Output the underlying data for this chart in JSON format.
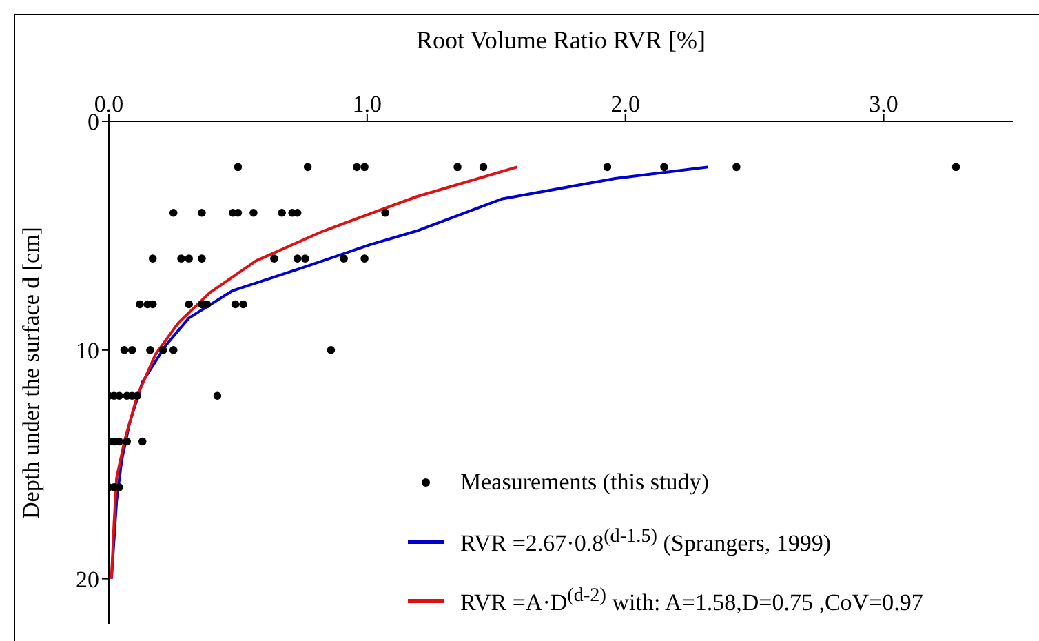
{
  "chart_data": {
    "type": "scatter",
    "xlabel": "Root Volume Ratio RVR [%]",
    "ylabel": "Depth under the surface d [cm]",
    "xlim": [
      0,
      3.5
    ],
    "xticks": [
      {
        "value": 0,
        "label": "0.0"
      },
      {
        "value": 1,
        "label": "1.0"
      },
      {
        "value": 2,
        "label": "2.0"
      },
      {
        "value": 3,
        "label": "3.0"
      }
    ],
    "ylim": [
      22,
      0
    ],
    "yticks": [
      0,
      10,
      20
    ],
    "grid": false,
    "legend": "bottom right",
    "marker": "circle",
    "series": [
      {
        "name": "Measurements (this study)",
        "color": "#000000",
        "x": [
          0.5,
          0.77,
          0.96,
          0.99,
          1.35,
          1.45,
          1.93,
          2.15,
          2.43,
          3.28,
          0.25,
          0.36,
          0.48,
          0.5,
          0.56,
          0.67,
          0.71,
          0.73,
          1.07,
          0.17,
          0.28,
          0.31,
          0.36,
          0.64,
          0.73,
          0.76,
          0.91,
          0.99,
          0.12,
          0.15,
          0.17,
          0.31,
          0.36,
          0.38,
          0.49,
          0.52,
          0.06,
          0.09,
          0.16,
          0.21,
          0.25,
          0.86,
          0.0,
          0.02,
          0.04,
          0.07,
          0.09,
          0.11,
          0.42,
          0.0,
          0.02,
          0.04,
          0.07,
          0.13,
          0.0,
          0.02,
          0.04
        ],
        "values": [
          2,
          2,
          2,
          2,
          2,
          2,
          2,
          2,
          2,
          2,
          4,
          4,
          4,
          4,
          4,
          4,
          4,
          4,
          4,
          6,
          6,
          6,
          6,
          6,
          6,
          6,
          6,
          6,
          8,
          8,
          8,
          8,
          8,
          8,
          8,
          8,
          10,
          10,
          10,
          10,
          10,
          10,
          12,
          12,
          12,
          12,
          12,
          12,
          12,
          14,
          14,
          14,
          14,
          14,
          16,
          16,
          16
        ]
      },
      {
        "name": "RVR =2.67·0.8$^{(d-1.5)}$  (Sprangers, 1999)",
        "type": "line",
        "marker": "none",
        "line_style": "solid",
        "color": "#0000cc",
        "x": [
          2.32,
          1.96,
          1.52,
          1.19,
          1.01,
          0.75,
          0.48,
          0.31,
          0.22,
          0.13,
          0.08,
          0.05,
          0.03,
          0.01
        ],
        "values": [
          2.0,
          2.5,
          3.4,
          4.8,
          5.4,
          6.4,
          7.4,
          8.6,
          9.8,
          11.4,
          13.2,
          14.8,
          16.6,
          20
        ]
      },
      {
        "name": "RVR =A·D$^{(d-2)}$ with: A=1.58,D=0.75 ,CoV=0.97",
        "type": "line",
        "marker": "none",
        "line_style": "solid",
        "color": "#dd1111",
        "x": [
          1.58,
          1.19,
          0.83,
          0.57,
          0.39,
          0.27,
          0.18,
          0.11,
          0.06,
          0.03,
          0.02,
          0.01
        ],
        "values": [
          2.0,
          3.3,
          4.8,
          6.1,
          7.5,
          8.8,
          10.2,
          12.0,
          14.0,
          15.6,
          17.6,
          20
        ]
      }
    ]
  }
}
